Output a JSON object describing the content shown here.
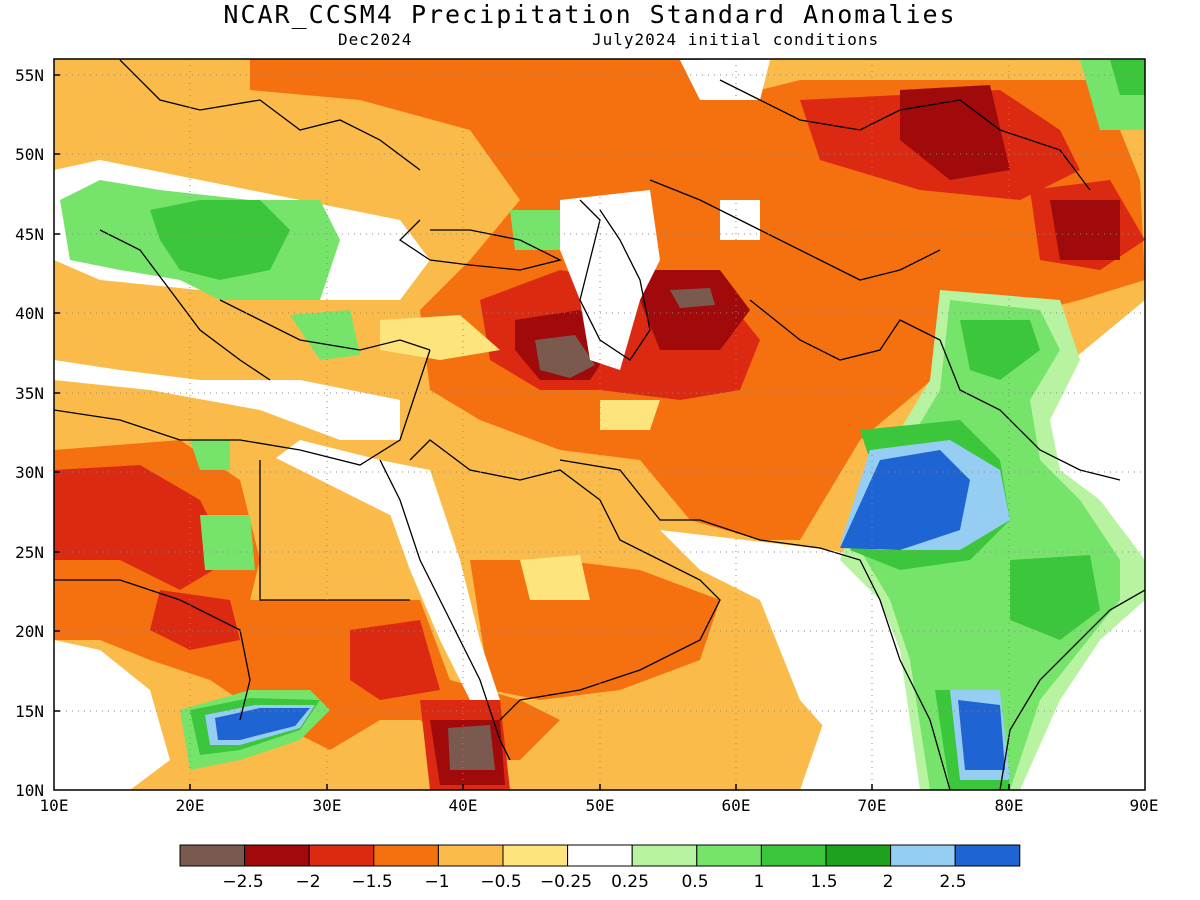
{
  "title": "NCAR_CCSM4 Precipitation Standard Anomalies",
  "subtitle_left": "Dec2024",
  "subtitle_right": "July2024 initial conditions",
  "map": {
    "lon_range": [
      10,
      90
    ],
    "lat_range": [
      10,
      56
    ],
    "lat_ticks": [
      "55N",
      "50N",
      "45N",
      "40N",
      "35N",
      "30N",
      "25N",
      "20N",
      "15N",
      "10N"
    ],
    "lon_ticks": [
      "10E",
      "20E",
      "30E",
      "40E",
      "50E",
      "60E",
      "70E",
      "80E",
      "90E"
    ]
  },
  "colorbar": {
    "colors": [
      "#7a5a4e",
      "#a00a0a",
      "#dc2a12",
      "#f5700f",
      "#fbbb4b",
      "#fde47c",
      "#ffffff",
      "#b7f3a1",
      "#76e46a",
      "#3cc63c",
      "#1ea11e",
      "#96cdf3",
      "#1e64d2"
    ],
    "labels": [
      "−2.5",
      "−2",
      "−1.5",
      "−1",
      "−0.5",
      "−0.25",
      "0.25",
      "0.5",
      "1",
      "1.5",
      "2",
      "2.5"
    ]
  }
}
